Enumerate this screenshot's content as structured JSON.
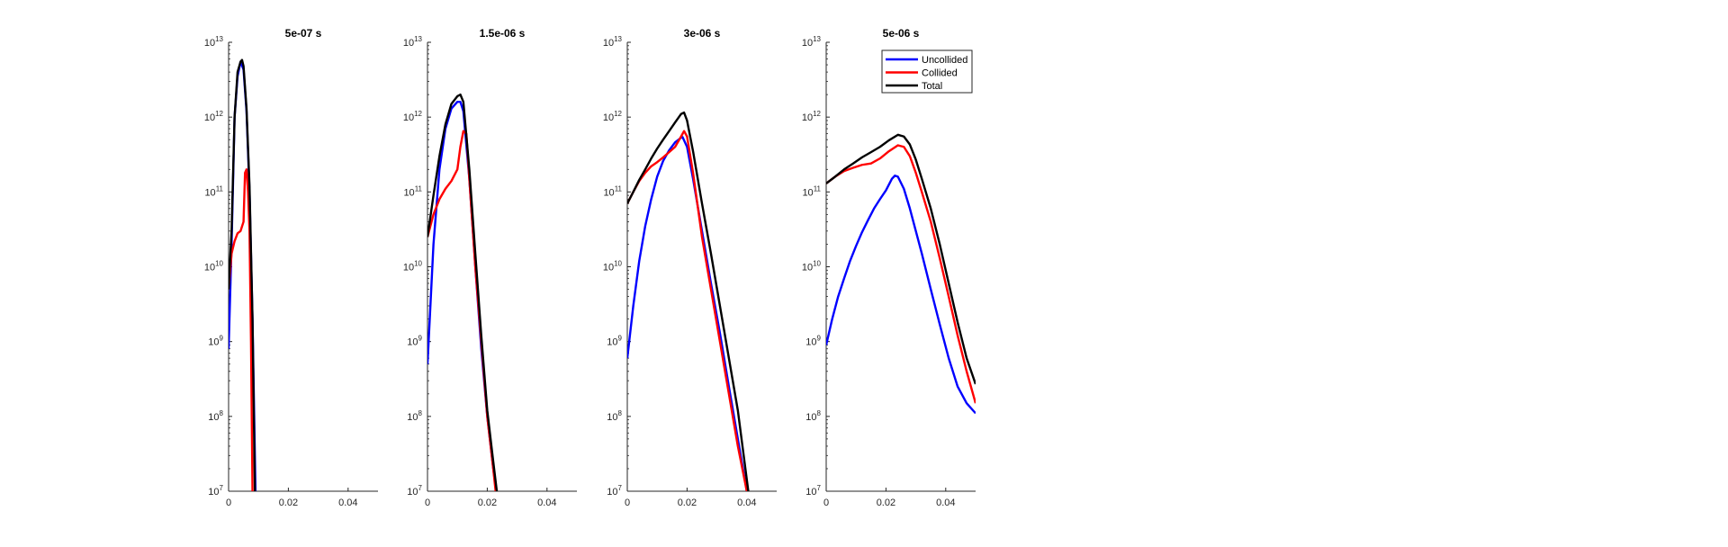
{
  "legend": {
    "placement": "top-right of last panel",
    "entries": [
      {
        "name": "Uncollided",
        "color": "#0000ff"
      },
      {
        "name": "Collided",
        "color": "#ff0000"
      },
      {
        "name": "Total",
        "color": "#000000"
      }
    ]
  },
  "chart_data": [
    {
      "type": "line",
      "title": "5e-07 s",
      "xlim": [
        0,
        0.05
      ],
      "ylim": [
        10000000.0,
        10000000000000.0
      ],
      "yscale": "log",
      "xticks": [
        0,
        0.02,
        0.04
      ],
      "xtick_labels": [
        "0",
        "0.02",
        "0.04"
      ],
      "yticks": [
        7,
        8,
        9,
        10,
        11,
        12,
        13
      ],
      "series": [
        {
          "name": "Uncollided",
          "color": "#0000ff",
          "x": [
            0,
            0.001,
            0.002,
            0.003,
            0.004,
            0.005,
            0.006,
            0.007,
            0.008,
            0.009
          ],
          "y": [
            800000000.0,
            20000000000.0,
            1000000000000.0,
            3500000000000.0,
            5500000000000.0,
            4300000000000.0,
            1200000000000.0,
            100000000000.0,
            2000000000.0,
            10000000.0
          ]
        },
        {
          "name": "Collided",
          "color": "#ff0000",
          "x": [
            0,
            0.001,
            0.002,
            0.003,
            0.004,
            0.005,
            0.0055,
            0.006,
            0.0065,
            0.007,
            0.0075,
            0.008
          ],
          "y": [
            5000000000.0,
            15000000000.0,
            22000000000.0,
            28000000000.0,
            30000000000.0,
            40000000000.0,
            180000000000.0,
            200000000000.0,
            100000000000.0,
            30000000000.0,
            1000000000.0,
            10000000.0
          ]
        },
        {
          "name": "Total",
          "color": "#000000",
          "x": [
            0,
            0.001,
            0.002,
            0.003,
            0.004,
            0.0045,
            0.005,
            0.006,
            0.007,
            0.008,
            0.0088
          ],
          "y": [
            5000000000.0,
            30000000000.0,
            1000000000000.0,
            4000000000000.0,
            5500000000000.0,
            5800000000000.0,
            4800000000000.0,
            1300000000000.0,
            120000000000.0,
            2000000000.0,
            10000000.0
          ]
        }
      ]
    },
    {
      "type": "line",
      "title": "1.5e-06 s",
      "xlim": [
        0,
        0.05
      ],
      "ylim": [
        10000000.0,
        10000000000000.0
      ],
      "yscale": "log",
      "xticks": [
        0,
        0.02,
        0.04
      ],
      "xtick_labels": [
        "0",
        "0.02",
        "0.04"
      ],
      "yticks": [
        7,
        8,
        9,
        10,
        11,
        12,
        13
      ],
      "series": [
        {
          "name": "Uncollided",
          "color": "#0000ff",
          "x": [
            0,
            0.002,
            0.004,
            0.006,
            0.008,
            0.01,
            0.011,
            0.012,
            0.014,
            0.016,
            0.018,
            0.02,
            0.022,
            0.023
          ],
          "y": [
            500000000.0,
            20000000000.0,
            200000000000.0,
            700000000000.0,
            1300000000000.0,
            1600000000000.0,
            1600000000000.0,
            1200000000000.0,
            150000000000.0,
            10000000000.0,
            800000000.0,
            100000000.0,
            20000000.0,
            10000000.0
          ]
        },
        {
          "name": "Collided",
          "color": "#ff0000",
          "x": [
            0,
            0.002,
            0.004,
            0.006,
            0.008,
            0.01,
            0.011,
            0.012,
            0.013,
            0.014,
            0.016,
            0.018,
            0.02,
            0.022,
            0.0228
          ],
          "y": [
            25000000000.0,
            50000000000.0,
            80000000000.0,
            110000000000.0,
            140000000000.0,
            200000000000.0,
            400000000000.0,
            650000000000.0,
            600000000000.0,
            150000000000.0,
            10000000000.0,
            1000000000.0,
            100000000.0,
            20000000.0,
            10000000.0
          ]
        },
        {
          "name": "Total",
          "color": "#000000",
          "x": [
            0,
            0.002,
            0.004,
            0.006,
            0.008,
            0.01,
            0.011,
            0.012,
            0.014,
            0.016,
            0.018,
            0.02,
            0.022,
            0.0232
          ],
          "y": [
            25000000000.0,
            90000000000.0,
            300000000000.0,
            800000000000.0,
            1500000000000.0,
            1900000000000.0,
            2000000000000.0,
            1600000000000.0,
            200000000000.0,
            15000000000.0,
            1200000000.0,
            120000000.0,
            25000000.0,
            10000000.0
          ]
        }
      ]
    },
    {
      "type": "line",
      "title": "3e-06 s",
      "xlim": [
        0,
        0.05
      ],
      "ylim": [
        10000000.0,
        10000000000000.0
      ],
      "yscale": "log",
      "xticks": [
        0,
        0.02,
        0.04
      ],
      "xtick_labels": [
        "0",
        "0.02",
        "0.04"
      ],
      "yticks": [
        7,
        8,
        9,
        10,
        11,
        12,
        13
      ],
      "series": [
        {
          "name": "Uncollided",
          "color": "#0000ff",
          "x": [
            0,
            0.002,
            0.004,
            0.006,
            0.008,
            0.01,
            0.012,
            0.014,
            0.016,
            0.018,
            0.0185,
            0.02,
            0.022,
            0.025,
            0.028,
            0.031,
            0.034,
            0.037,
            0.04
          ],
          "y": [
            600000000.0,
            3000000000.0,
            12000000000.0,
            35000000000.0,
            80000000000.0,
            160000000000.0,
            260000000000.0,
            360000000000.0,
            460000000000.0,
            530000000000.0,
            540000000000.0,
            400000000000.0,
            150000000000.0,
            30000000000.0,
            6000000000.0,
            1300000000.0,
            250000000.0,
            50000000.0,
            10000000.0
          ]
        },
        {
          "name": "Collided",
          "color": "#ff0000",
          "x": [
            0,
            0.002,
            0.004,
            0.006,
            0.008,
            0.01,
            0.012,
            0.014,
            0.016,
            0.018,
            0.019,
            0.02,
            0.022,
            0.025,
            0.028,
            0.031,
            0.034,
            0.037,
            0.04
          ],
          "y": [
            70000000000.0,
            100000000000.0,
            140000000000.0,
            180000000000.0,
            220000000000.0,
            250000000000.0,
            290000000000.0,
            340000000000.0,
            400000000000.0,
            550000000000.0,
            650000000000.0,
            550000000000.0,
            180000000000.0,
            25000000000.0,
            5000000000.0,
            1000000000.0,
            200000000.0,
            40000000.0,
            10000000.0
          ]
        },
        {
          "name": "Total",
          "color": "#000000",
          "x": [
            0,
            0.002,
            0.004,
            0.006,
            0.008,
            0.01,
            0.012,
            0.014,
            0.016,
            0.018,
            0.019,
            0.02,
            0.022,
            0.025,
            0.028,
            0.031,
            0.034,
            0.037,
            0.0405
          ],
          "y": [
            70000000000.0,
            100000000000.0,
            145000000000.0,
            200000000000.0,
            280000000000.0,
            380000000000.0,
            500000000000.0,
            650000000000.0,
            850000000000.0,
            1100000000000.0,
            1150000000000.0,
            900000000000.0,
            350000000000.0,
            70000000000.0,
            15000000000.0,
            3000000000.0,
            600000000.0,
            120000000.0,
            10000000.0
          ]
        }
      ]
    },
    {
      "type": "line",
      "title": "5e-06 s",
      "xlim": [
        0,
        0.05
      ],
      "ylim": [
        10000000.0,
        10000000000000.0
      ],
      "yscale": "log",
      "xticks": [
        0,
        0.02,
        0.04
      ],
      "xtick_labels": [
        "0",
        "0.02",
        "0.04"
      ],
      "yticks": [
        7,
        8,
        9,
        10,
        11,
        12,
        13
      ],
      "series": [
        {
          "name": "Uncollided",
          "color": "#0000ff",
          "x": [
            0,
            0.002,
            0.004,
            0.006,
            0.008,
            0.01,
            0.012,
            0.014,
            0.016,
            0.018,
            0.02,
            0.022,
            0.023,
            0.024,
            0.026,
            0.028,
            0.03,
            0.032,
            0.035,
            0.038,
            0.041,
            0.044,
            0.047,
            0.05
          ],
          "y": [
            900000000.0,
            2000000000.0,
            4000000000.0,
            7000000000.0,
            12000000000.0,
            19000000000.0,
            29000000000.0,
            42000000000.0,
            60000000000.0,
            80000000000.0,
            105000000000.0,
            150000000000.0,
            165000000000.0,
            160000000000.0,
            110000000000.0,
            60000000000.0,
            30000000000.0,
            15000000000.0,
            5000000000.0,
            1700000000.0,
            600000000.0,
            250000000.0,
            150000000.0,
            110000000.0
          ]
        },
        {
          "name": "Collided",
          "color": "#ff0000",
          "x": [
            0,
            0.003,
            0.006,
            0.009,
            0.012,
            0.015,
            0.018,
            0.021,
            0.024,
            0.026,
            0.028,
            0.03,
            0.032,
            0.035,
            0.038,
            0.041,
            0.044,
            0.047,
            0.05
          ],
          "y": [
            130000000000.0,
            160000000000.0,
            190000000000.0,
            210000000000.0,
            230000000000.0,
            240000000000.0,
            280000000000.0,
            350000000000.0,
            420000000000.0,
            400000000000.0,
            300000000000.0,
            180000000000.0,
            100000000000.0,
            40000000000.0,
            13000000000.0,
            4000000000.0,
            1200000000.0,
            400000000.0,
            150000000.0
          ]
        },
        {
          "name": "Total",
          "color": "#000000",
          "x": [
            0,
            0.003,
            0.006,
            0.009,
            0.012,
            0.015,
            0.018,
            0.021,
            0.024,
            0.026,
            0.028,
            0.03,
            0.032,
            0.035,
            0.038,
            0.041,
            0.044,
            0.047,
            0.05
          ],
          "y": [
            130000000000.0,
            160000000000.0,
            200000000000.0,
            240000000000.0,
            290000000000.0,
            340000000000.0,
            400000000000.0,
            490000000000.0,
            580000000000.0,
            550000000000.0,
            430000000000.0,
            270000000000.0,
            150000000000.0,
            60000000000.0,
            20000000000.0,
            6000000000.0,
            1800000000.0,
            600000000.0,
            270000000.0
          ]
        }
      ]
    }
  ]
}
